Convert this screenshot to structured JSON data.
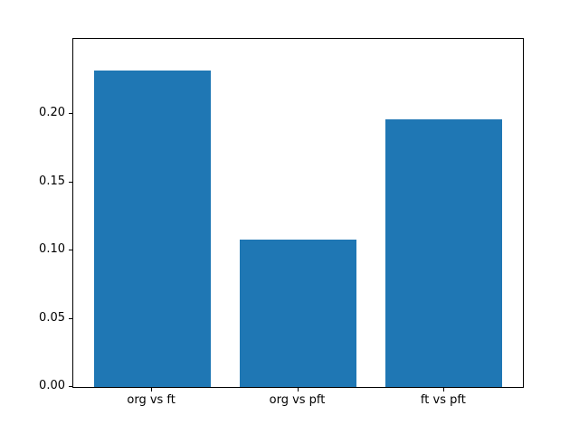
{
  "chart_data": {
    "type": "bar",
    "categories": [
      "org vs ft",
      "org vs pft",
      "ft vs pft"
    ],
    "values": [
      0.232,
      0.108,
      0.196
    ],
    "title": "",
    "xlabel": "",
    "ylabel": "",
    "ylim": [
      0,
      0.255
    ],
    "xlim": [
      -0.54,
      2.54
    ],
    "yticks": [
      0.0,
      0.05,
      0.1,
      0.15,
      0.2
    ],
    "bar_width": 0.8,
    "bar_color": "#1f77b4",
    "background_color": "#ffffff",
    "axis_color": "#000000",
    "grid": false,
    "legend": null
  }
}
